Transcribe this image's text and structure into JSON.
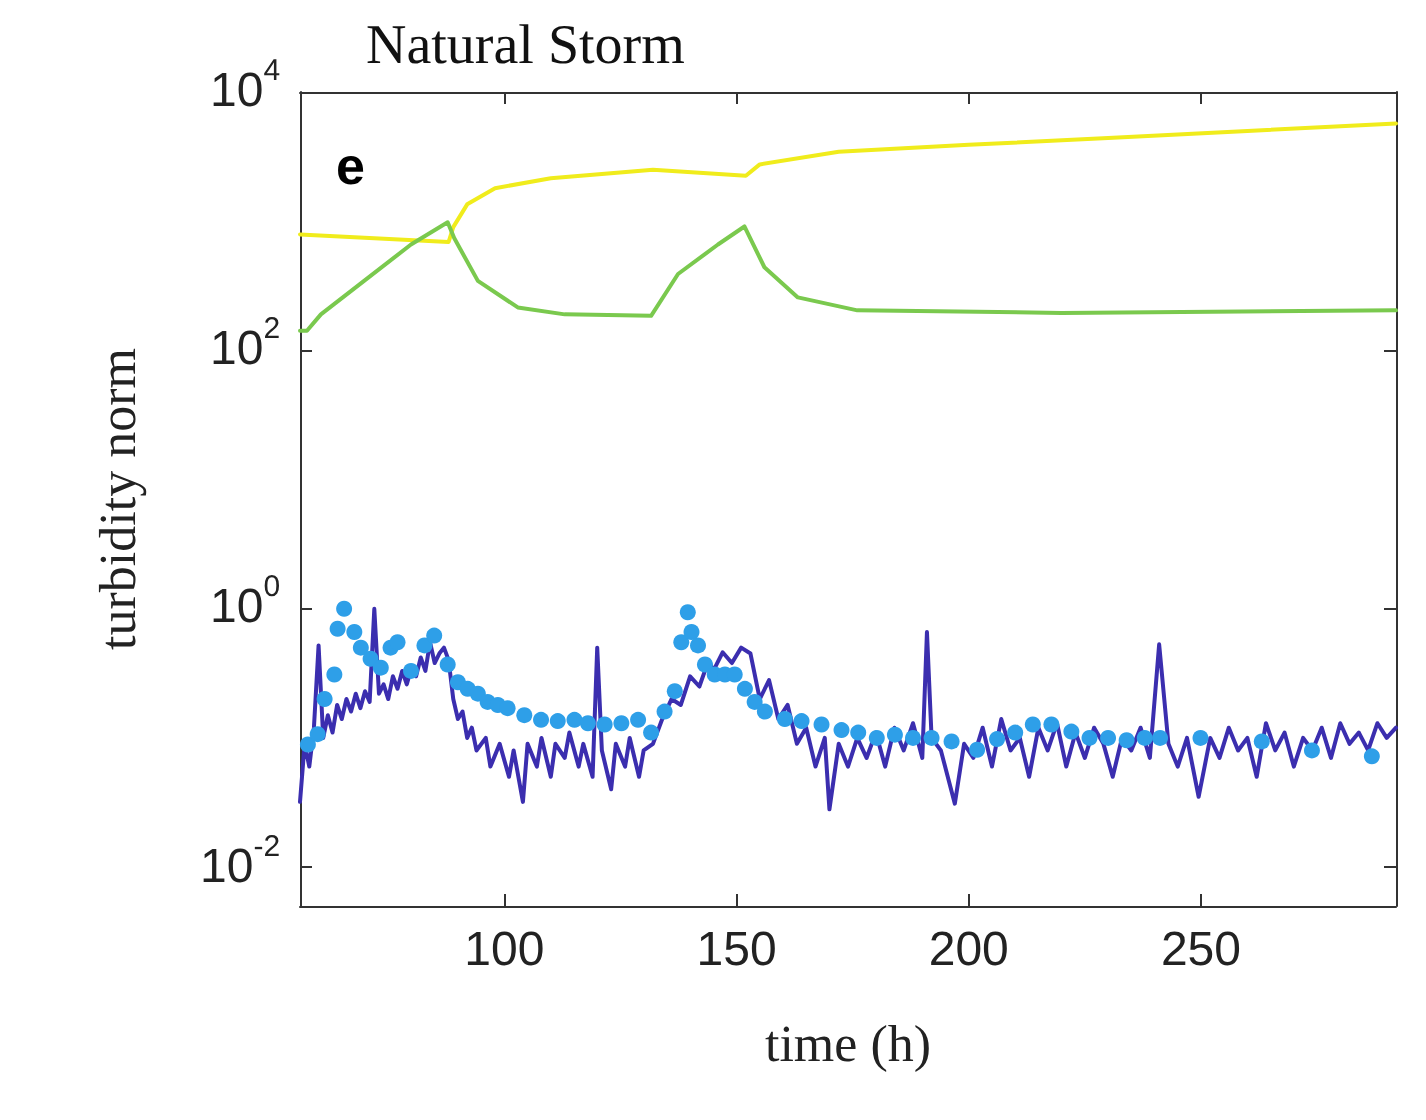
{
  "chart_data": {
    "type": "line",
    "title": "Natural Storm",
    "xlabel": "time (h)",
    "ylabel": "turbidity norm",
    "annotations": [
      "e"
    ],
    "log": "y",
    "grid": false,
    "xlim": [
      56,
      292
    ],
    "xticks": [
      100,
      150,
      200,
      250
    ],
    "ylim": [
      0.005,
      10000
    ],
    "yticks": [
      {
        "value": 0.01,
        "label": "10$^{-2}$"
      },
      {
        "value": 1,
        "label": "10$^{0}$"
      },
      {
        "value": 100,
        "label": "10$^{2}$"
      },
      {
        "value": 10000,
        "label": "10$^{4}$"
      }
    ],
    "series": [
      {
        "marker": "none",
        "color": "#f0ec1c",
        "x": [
          56,
          88,
          89,
          92,
          98,
          110,
          132,
          152,
          155,
          172,
          200,
          230,
          260,
          292
        ],
        "values": [
          790,
          690,
          900,
          1350,
          1800,
          2150,
          2500,
          2250,
          2750,
          3450,
          3900,
          4400,
          5000,
          5700
        ]
      },
      {
        "marker": "none",
        "color": "#7ac94e",
        "x": [
          56,
          57.5,
          60.5,
          69.8,
          79.9,
          87.8,
          89.2,
          94.3,
          102.9,
          113,
          131.6,
          137.4,
          146,
          151.7,
          156,
          163.2,
          176,
          220,
          292
        ],
        "values": [
          142,
          142,
          190,
          345,
          660,
          980,
          740,
          345,
          215,
          190,
          185,
          390,
          660,
          910,
          440,
          257,
          204,
          195,
          204
        ]
      },
      {
        "marker": "none",
        "color": "#3b2eaf",
        "x": [
          56,
          57,
          58,
          59,
          60,
          61,
          62,
          63,
          64,
          65,
          66,
          67,
          68,
          69,
          70,
          71,
          72,
          73,
          74,
          75,
          76,
          77,
          78,
          79,
          80,
          81,
          82,
          83,
          84,
          85,
          86,
          87,
          88,
          89,
          90,
          91,
          92,
          93,
          94,
          96,
          97,
          99,
          101,
          102,
          104,
          105,
          107,
          108,
          110,
          111,
          113,
          114,
          116,
          117,
          119,
          120,
          121,
          123,
          124,
          126,
          127,
          129,
          130,
          132,
          134,
          136,
          138,
          140,
          142,
          144,
          145,
          147,
          149,
          151,
          153,
          155,
          157,
          159,
          161,
          163,
          165,
          167,
          169,
          170,
          172,
          174,
          176,
          178,
          180,
          182,
          184,
          186,
          188,
          190,
          191,
          192,
          194,
          197,
          199,
          201,
          203,
          205,
          207,
          209,
          211,
          213,
          215,
          217,
          219,
          221,
          223,
          225,
          227,
          229,
          231,
          233,
          235,
          237,
          239,
          241,
          243,
          245,
          247,
          249.5,
          252,
          254,
          256,
          258,
          260,
          262,
          264,
          266,
          268,
          270,
          272,
          274,
          276,
          278,
          280,
          282,
          284,
          286,
          288,
          290,
          292
        ],
        "values": [
          0.032,
          0.09,
          0.06,
          0.12,
          0.52,
          0.1,
          0.15,
          0.11,
          0.18,
          0.14,
          0.2,
          0.16,
          0.22,
          0.17,
          0.23,
          0.19,
          1.0,
          0.22,
          0.26,
          0.2,
          0.3,
          0.24,
          0.33,
          0.26,
          0.35,
          0.3,
          0.42,
          0.33,
          0.55,
          0.38,
          0.45,
          0.5,
          0.4,
          0.2,
          0.14,
          0.16,
          0.1,
          0.12,
          0.08,
          0.1,
          0.06,
          0.09,
          0.05,
          0.08,
          0.032,
          0.09,
          0.06,
          0.1,
          0.05,
          0.09,
          0.07,
          0.11,
          0.06,
          0.09,
          0.05,
          0.5,
          0.08,
          0.04,
          0.09,
          0.06,
          0.1,
          0.05,
          0.08,
          0.09,
          0.14,
          0.2,
          0.18,
          0.3,
          0.25,
          0.4,
          0.33,
          0.46,
          0.38,
          0.5,
          0.45,
          0.2,
          0.28,
          0.14,
          0.18,
          0.09,
          0.12,
          0.06,
          0.1,
          0.028,
          0.09,
          0.06,
          0.1,
          0.07,
          0.11,
          0.06,
          0.12,
          0.08,
          0.13,
          0.07,
          0.66,
          0.1,
          0.08,
          0.031,
          0.09,
          0.07,
          0.12,
          0.06,
          0.14,
          0.08,
          0.1,
          0.05,
          0.12,
          0.08,
          0.13,
          0.06,
          0.11,
          0.07,
          0.12,
          0.09,
          0.05,
          0.1,
          0.08,
          0.12,
          0.07,
          0.53,
          0.09,
          0.06,
          0.1,
          0.035,
          0.1,
          0.07,
          0.12,
          0.08,
          0.1,
          0.05,
          0.13,
          0.08,
          0.11,
          0.06,
          0.1,
          0.08,
          0.12,
          0.07,
          0.13,
          0.09,
          0.11,
          0.08,
          0.13,
          0.1,
          0.12
        ]
      },
      {
        "type": "scatter",
        "marker": "circle",
        "color": "#2e9fe8",
        "x": [
          57.7,
          59.8,
          61.3,
          63.4,
          64.1,
          65.5,
          67.7,
          69.1,
          71.2,
          73.4,
          75.5,
          77,
          79.9,
          82.8,
          84.9,
          87.8,
          90,
          92.1,
          94.3,
          96.4,
          98.6,
          100.7,
          104.3,
          107.9,
          111.5,
          115.1,
          118,
          121.6,
          125.2,
          128.8,
          131.6,
          134.5,
          136.7,
          138.1,
          139.5,
          140.3,
          141.7,
          143.2,
          145.3,
          147.5,
          149.6,
          151.8,
          153.9,
          156.1,
          160.4,
          164,
          168.3,
          172.6,
          176.2,
          180.2,
          184.1,
          188,
          192,
          196.3,
          201.8,
          206.1,
          210,
          213.8,
          217.8,
          222.1,
          226,
          230,
          234,
          237.9,
          241.2,
          249.9,
          263.1,
          273.9,
          286.8
        ],
        "values": [
          0.089,
          0.107,
          0.2,
          0.31,
          0.7,
          1.0,
          0.66,
          0.5,
          0.41,
          0.35,
          0.5,
          0.55,
          0.33,
          0.52,
          0.62,
          0.37,
          0.27,
          0.24,
          0.22,
          0.19,
          0.18,
          0.17,
          0.15,
          0.138,
          0.135,
          0.138,
          0.13,
          0.127,
          0.13,
          0.138,
          0.11,
          0.16,
          0.23,
          0.55,
          0.94,
          0.66,
          0.52,
          0.37,
          0.31,
          0.31,
          0.31,
          0.24,
          0.19,
          0.16,
          0.14,
          0.135,
          0.127,
          0.115,
          0.11,
          0.1,
          0.106,
          0.1,
          0.1,
          0.094,
          0.081,
          0.098,
          0.11,
          0.127,
          0.127,
          0.112,
          0.1,
          0.1,
          0.096,
          0.1,
          0.1,
          0.1,
          0.094,
          0.08,
          0.072
        ]
      }
    ]
  }
}
